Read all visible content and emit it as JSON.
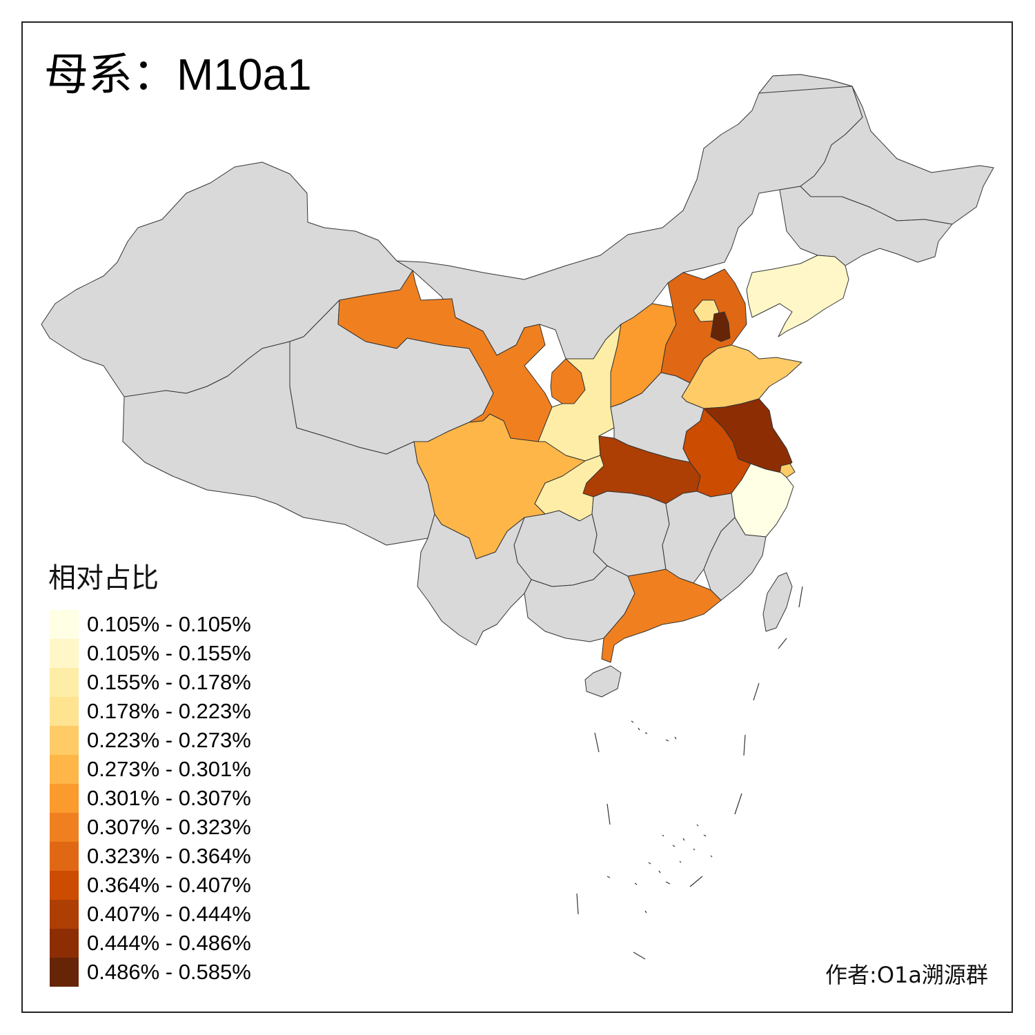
{
  "title": {
    "label": "母系：",
    "haplogroup": "M10a1"
  },
  "legend": {
    "title": "相对占比",
    "items": [
      {
        "label": "0.105% - 0.105%",
        "color": "#ffffe5"
      },
      {
        "label": "0.105% - 0.155%",
        "color": "#fff7c8"
      },
      {
        "label": "0.155% - 0.178%",
        "color": "#feeda6"
      },
      {
        "label": "0.178% - 0.223%",
        "color": "#fee391"
      },
      {
        "label": "0.223% - 0.273%",
        "color": "#fecb66"
      },
      {
        "label": "0.273% - 0.301%",
        "color": "#feb648"
      },
      {
        "label": "0.301% - 0.307%",
        "color": "#fb9a2d"
      },
      {
        "label": "0.307% - 0.323%",
        "color": "#f0801f"
      },
      {
        "label": "0.323% - 0.364%",
        "color": "#e06814"
      },
      {
        "label": "0.364% - 0.407%",
        "color": "#cc4c02"
      },
      {
        "label": "0.407% - 0.444%",
        "color": "#ad3f04"
      },
      {
        "label": "0.444% - 0.486%",
        "color": "#8c2d04"
      },
      {
        "label": "0.486% - 0.585%",
        "color": "#662506"
      }
    ]
  },
  "colors": {
    "no_data": "#d9d9d9",
    "border": "#333333"
  },
  "provinces": [
    {
      "id": "xinjiang",
      "class": -1
    },
    {
      "id": "xizang",
      "class": -1
    },
    {
      "id": "neimenggu",
      "class": -1
    },
    {
      "id": "heilongjiang",
      "class": -1
    },
    {
      "id": "jilin",
      "class": -1
    },
    {
      "id": "liaoning",
      "class": 1
    },
    {
      "id": "gansu",
      "class": 7
    },
    {
      "id": "qinghai",
      "class": -1
    },
    {
      "id": "ningxia",
      "class": 7
    },
    {
      "id": "shaanxi",
      "class": 2
    },
    {
      "id": "shanxi",
      "class": 6
    },
    {
      "id": "hebei",
      "class": 8
    },
    {
      "id": "beijing",
      "class": 3
    },
    {
      "id": "tianjin",
      "class": 12
    },
    {
      "id": "shandong",
      "class": 4
    },
    {
      "id": "henan",
      "class": -1
    },
    {
      "id": "jiangsu",
      "class": 11
    },
    {
      "id": "shanghai",
      "class": 4
    },
    {
      "id": "anhui",
      "class": 9
    },
    {
      "id": "zhejiang",
      "class": 0
    },
    {
      "id": "hubei",
      "class": 10
    },
    {
      "id": "sichuan",
      "class": 5
    },
    {
      "id": "chongqing",
      "class": 2
    },
    {
      "id": "hunan",
      "class": -1
    },
    {
      "id": "jiangxi",
      "class": -1
    },
    {
      "id": "fujian",
      "class": -1
    },
    {
      "id": "guizhou",
      "class": -1
    },
    {
      "id": "yunnan",
      "class": -1
    },
    {
      "id": "guangxi",
      "class": -1
    },
    {
      "id": "guangdong",
      "class": 7
    },
    {
      "id": "hainan",
      "class": -1
    },
    {
      "id": "taiwan",
      "class": -1
    }
  ],
  "credit": "作者:O1a溯源群"
}
